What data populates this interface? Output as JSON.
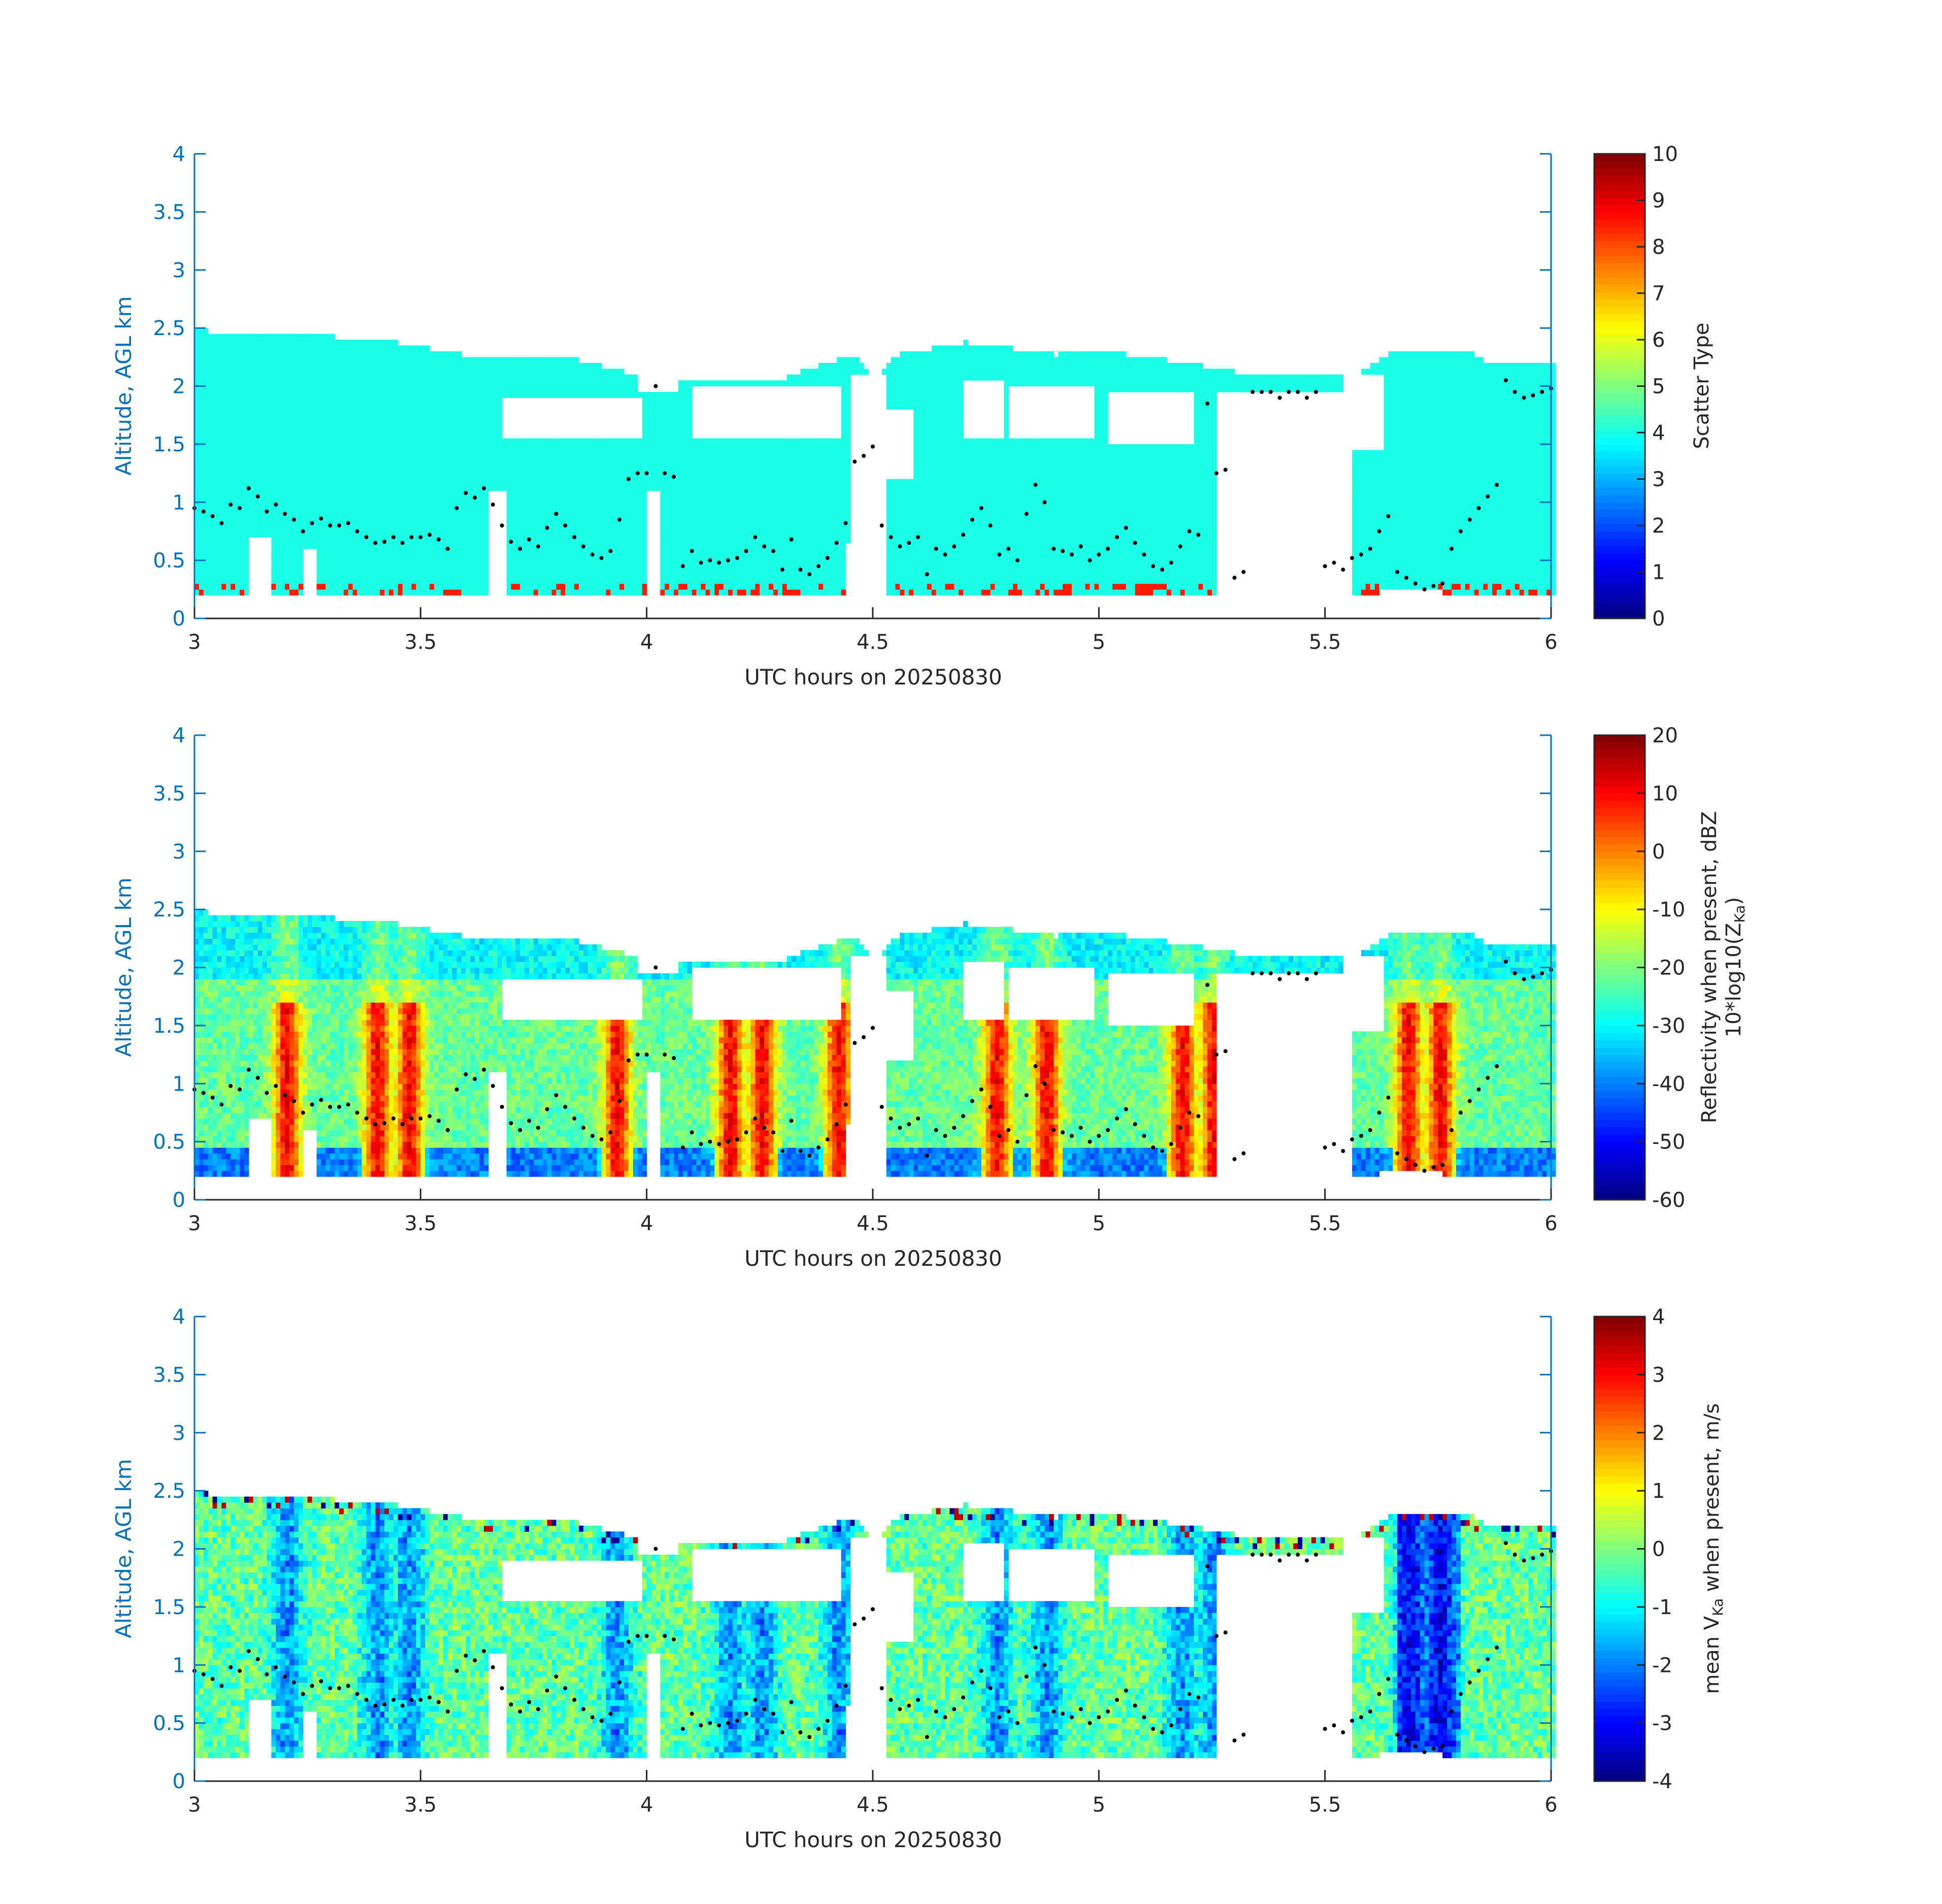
{
  "figure": {
    "colors": {
      "axis_blue": "#0072BD",
      "axis_black": "#262626",
      "background": "#ffffff",
      "dot": "#000000"
    },
    "colormap": "jet"
  },
  "chart_data": [
    {
      "type": "heatmap",
      "xlabel": "UTC hours on 20250830",
      "ylabel": "Altitude, AGL km",
      "colorbar_label": "Scatter Type",
      "xlim": [
        3,
        6
      ],
      "ylim": [
        0,
        4
      ],
      "clim": [
        0,
        10
      ],
      "x_ticks": [
        "3",
        "3.5",
        "4",
        "4.5",
        "5",
        "5.5",
        "6"
      ],
      "y_ticks": [
        "0",
        "0.5",
        "1",
        "1.5",
        "2",
        "2.5",
        "3",
        "3.5",
        "4"
      ],
      "cbar_ticks": [
        "0",
        "1",
        "2",
        "3",
        "4",
        "5",
        "6",
        "7",
        "8",
        "9",
        "10"
      ],
      "cloud_top_km": [
        [
          3.0,
          2.48
        ],
        [
          3.05,
          2.42
        ],
        [
          3.2,
          2.42
        ],
        [
          3.4,
          2.38
        ],
        [
          3.6,
          2.24
        ],
        [
          3.7,
          2.22
        ],
        [
          3.85,
          2.2
        ],
        [
          4.0,
          2.05
        ],
        [
          4.1,
          2.05
        ],
        [
          4.1,
          2.0
        ],
        [
          4.3,
          2.05
        ],
        [
          4.45,
          2.25
        ],
        [
          4.5,
          2.05
        ],
        [
          4.55,
          2.25
        ],
        [
          4.7,
          2.35
        ],
        [
          4.9,
          2.25
        ],
        [
          5.0,
          2.28
        ],
        [
          5.15,
          2.2
        ],
        [
          5.3,
          2.1
        ],
        [
          5.45,
          2.1
        ],
        [
          5.55,
          2.05
        ],
        [
          5.65,
          2.3
        ],
        [
          5.8,
          2.3
        ],
        [
          5.85,
          2.2
        ],
        [
          6.0,
          2.18
        ]
      ],
      "cloud_base_km": 0.2,
      "dominant_value": 4,
      "drizzle_value": 8.5
    },
    {
      "type": "heatmap",
      "xlabel": "UTC hours on 20250830",
      "ylabel": "Altitude, AGL km",
      "colorbar_label_line1": "Reflectivity when present, dBZ",
      "colorbar_label_line2": "10*log10(Z",
      "colorbar_label_sub": "Ka",
      "colorbar_label_close": ")",
      "xlim": [
        3,
        6
      ],
      "ylim": [
        0,
        4
      ],
      "clim": [
        -60,
        20
      ],
      "x_ticks": [
        "3",
        "3.5",
        "4",
        "4.5",
        "5",
        "5.5",
        "6"
      ],
      "y_ticks": [
        "0",
        "0.5",
        "1",
        "1.5",
        "2",
        "2.5",
        "3",
        "3.5",
        "4"
      ],
      "cbar_ticks": [
        "-60",
        "-50",
        "-40",
        "-30",
        "-20",
        "-10",
        "0",
        "10",
        "20"
      ],
      "high_reflectivity_cores_utc": [
        3.2,
        3.4,
        3.47,
        3.93,
        4.18,
        4.25,
        4.42,
        4.77,
        4.88,
        5.18,
        5.25,
        5.68,
        5.75
      ]
    },
    {
      "type": "heatmap",
      "xlabel": "UTC hours on 20250830",
      "ylabel": "Altitude, AGL km",
      "colorbar_label_pre": "mean V",
      "colorbar_label_sub": "Ka",
      "colorbar_label_post": " when present, m/s",
      "xlim": [
        3,
        6
      ],
      "ylim": [
        0,
        4
      ],
      "clim": [
        -4,
        4
      ],
      "x_ticks": [
        "3",
        "3.5",
        "4",
        "4.5",
        "5",
        "5.5",
        "6"
      ],
      "y_ticks": [
        "0",
        "0.5",
        "1",
        "1.5",
        "2",
        "2.5",
        "3",
        "3.5",
        "4"
      ],
      "cbar_ticks": [
        "-4",
        "-3",
        "-2",
        "-1",
        "0",
        "1",
        "2",
        "3",
        "4"
      ]
    }
  ],
  "overlay_dots_km": [
    [
      3.0,
      0.95
    ],
    [
      3.02,
      0.92
    ],
    [
      3.04,
      0.88
    ],
    [
      3.06,
      0.82
    ],
    [
      3.08,
      0.98
    ],
    [
      3.1,
      0.95
    ],
    [
      3.12,
      1.12
    ],
    [
      3.14,
      1.05
    ],
    [
      3.16,
      0.92
    ],
    [
      3.18,
      0.98
    ],
    [
      3.2,
      0.9
    ],
    [
      3.22,
      0.85
    ],
    [
      3.24,
      0.75
    ],
    [
      3.26,
      0.82
    ],
    [
      3.28,
      0.86
    ],
    [
      3.3,
      0.8
    ],
    [
      3.32,
      0.8
    ],
    [
      3.34,
      0.82
    ],
    [
      3.36,
      0.75
    ],
    [
      3.38,
      0.7
    ],
    [
      3.4,
      0.65
    ],
    [
      3.42,
      0.66
    ],
    [
      3.44,
      0.7
    ],
    [
      3.46,
      0.65
    ],
    [
      3.48,
      0.7
    ],
    [
      3.5,
      0.7
    ],
    [
      3.52,
      0.72
    ],
    [
      3.54,
      0.68
    ],
    [
      3.56,
      0.6
    ],
    [
      3.58,
      0.95
    ],
    [
      3.6,
      1.08
    ],
    [
      3.62,
      1.04
    ],
    [
      3.64,
      1.12
    ],
    [
      3.66,
      0.98
    ],
    [
      3.68,
      0.8
    ],
    [
      3.7,
      0.66
    ],
    [
      3.72,
      0.6
    ],
    [
      3.74,
      0.68
    ],
    [
      3.76,
      0.62
    ],
    [
      3.78,
      0.78
    ],
    [
      3.8,
      0.9
    ],
    [
      3.82,
      0.8
    ],
    [
      3.84,
      0.7
    ],
    [
      3.86,
      0.62
    ],
    [
      3.88,
      0.55
    ],
    [
      3.9,
      0.52
    ],
    [
      3.92,
      0.58
    ],
    [
      3.94,
      0.85
    ],
    [
      3.96,
      1.2
    ],
    [
      3.98,
      1.25
    ],
    [
      4.0,
      1.25
    ],
    [
      4.02,
      2.0
    ],
    [
      4.04,
      1.25
    ],
    [
      4.06,
      1.22
    ],
    [
      4.08,
      0.45
    ],
    [
      4.1,
      0.58
    ],
    [
      4.12,
      0.48
    ],
    [
      4.14,
      0.5
    ],
    [
      4.16,
      0.48
    ],
    [
      4.18,
      0.5
    ],
    [
      4.2,
      0.52
    ],
    [
      4.22,
      0.58
    ],
    [
      4.24,
      0.7
    ],
    [
      4.26,
      0.62
    ],
    [
      4.28,
      0.58
    ],
    [
      4.3,
      0.42
    ],
    [
      4.32,
      0.68
    ],
    [
      4.34,
      0.42
    ],
    [
      4.36,
      0.38
    ],
    [
      4.38,
      0.45
    ],
    [
      4.4,
      0.52
    ],
    [
      4.42,
      0.65
    ],
    [
      4.44,
      0.82
    ],
    [
      4.46,
      1.35
    ],
    [
      4.48,
      1.4
    ],
    [
      4.5,
      1.48
    ],
    [
      4.52,
      0.8
    ],
    [
      4.54,
      0.7
    ],
    [
      4.56,
      0.62
    ],
    [
      4.58,
      0.65
    ],
    [
      4.6,
      0.7
    ],
    [
      4.62,
      0.38
    ],
    [
      4.64,
      0.6
    ],
    [
      4.66,
      0.55
    ],
    [
      4.68,
      0.62
    ],
    [
      4.7,
      0.72
    ],
    [
      4.72,
      0.85
    ],
    [
      4.74,
      0.95
    ],
    [
      4.76,
      0.8
    ],
    [
      4.78,
      0.55
    ],
    [
      4.8,
      0.6
    ],
    [
      4.82,
      0.5
    ],
    [
      4.84,
      0.9
    ],
    [
      4.86,
      1.15
    ],
    [
      4.88,
      1.0
    ],
    [
      4.9,
      0.6
    ],
    [
      4.92,
      0.58
    ],
    [
      4.94,
      0.55
    ],
    [
      4.96,
      0.62
    ],
    [
      4.98,
      0.5
    ],
    [
      5.0,
      0.55
    ],
    [
      5.02,
      0.6
    ],
    [
      5.04,
      0.7
    ],
    [
      5.06,
      0.78
    ],
    [
      5.08,
      0.65
    ],
    [
      5.1,
      0.55
    ],
    [
      5.12,
      0.45
    ],
    [
      5.14,
      0.42
    ],
    [
      5.16,
      0.48
    ],
    [
      5.18,
      0.62
    ],
    [
      5.2,
      0.75
    ],
    [
      5.22,
      0.72
    ],
    [
      5.24,
      1.85
    ],
    [
      5.26,
      1.25
    ],
    [
      5.28,
      1.28
    ],
    [
      5.3,
      0.35
    ],
    [
      5.32,
      0.4
    ],
    [
      5.34,
      1.95
    ],
    [
      5.36,
      1.95
    ],
    [
      5.38,
      1.95
    ],
    [
      5.4,
      1.9
    ],
    [
      5.42,
      1.95
    ],
    [
      5.44,
      1.95
    ],
    [
      5.46,
      1.9
    ],
    [
      5.48,
      1.95
    ],
    [
      5.5,
      0.45
    ],
    [
      5.52,
      0.48
    ],
    [
      5.54,
      0.42
    ],
    [
      5.56,
      0.52
    ],
    [
      5.58,
      0.55
    ],
    [
      5.6,
      0.6
    ],
    [
      5.62,
      0.75
    ],
    [
      5.64,
      0.88
    ],
    [
      5.66,
      0.4
    ],
    [
      5.68,
      0.35
    ],
    [
      5.7,
      0.3
    ],
    [
      5.72,
      0.25
    ],
    [
      5.74,
      0.28
    ],
    [
      5.76,
      0.3
    ],
    [
      5.78,
      0.6
    ],
    [
      5.8,
      0.75
    ],
    [
      5.82,
      0.85
    ],
    [
      5.84,
      0.95
    ],
    [
      5.86,
      1.05
    ],
    [
      5.88,
      1.15
    ],
    [
      5.9,
      2.05
    ],
    [
      5.92,
      1.95
    ],
    [
      5.94,
      1.9
    ],
    [
      5.96,
      1.92
    ],
    [
      5.98,
      1.95
    ],
    [
      6.0,
      1.98
    ]
  ]
}
